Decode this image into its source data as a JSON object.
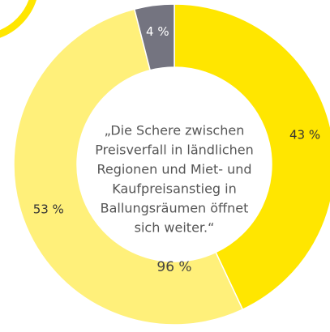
{
  "chart_data": {
    "type": "donut",
    "categories": [
      "43 %",
      "53 %",
      "4 %"
    ],
    "values": [
      43,
      53,
      4
    ],
    "value_labels": [
      "43 %",
      "53 %",
      "4 %"
    ],
    "colors": [
      "#ffe600",
      "#fff07a",
      "#747480"
    ],
    "center_text_lines": [
      "„Die Schere zwischen",
      "Preisverfall in ländlichen",
      "Regionen und Miet- und",
      "Kaufpreisanstieg in",
      "Ballungsräumen öffnet",
      "sich weiter.“"
    ],
    "center_value_label": "96 %"
  }
}
